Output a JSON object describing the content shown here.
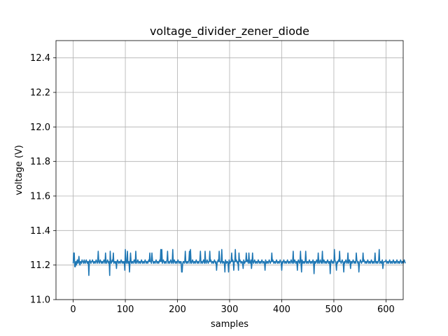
{
  "chart_data": {
    "type": "line",
    "title": "voltage_divider_zener_diode",
    "xlabel": "samples",
    "ylabel": "voltage (V)",
    "xlim": [
      -33,
      633
    ],
    "ylim": [
      11.0,
      12.5
    ],
    "x_ticks": [
      0,
      100,
      200,
      300,
      400,
      500,
      600
    ],
    "y_ticks": [
      11.0,
      11.2,
      11.4,
      11.6,
      11.8,
      12.0,
      12.2,
      12.4
    ],
    "x_tick_labels": [
      "0",
      "100",
      "200",
      "300",
      "400",
      "500",
      "600"
    ],
    "y_tick_labels": [
      "11.0",
      "11.2",
      "11.4",
      "11.6",
      "11.8",
      "12.0",
      "12.2",
      "12.4"
    ],
    "grid": true,
    "series": [
      {
        "color": "#1f77b4",
        "x_start": 0,
        "x_step": 1,
        "baseline": 11.22,
        "values": [
          11.21,
          11.27,
          11.2,
          11.19,
          11.21,
          11.22,
          11.2,
          11.22,
          11.23,
          11.21,
          11.22,
          11.25,
          11.21,
          11.2,
          11.22,
          11.22,
          11.21,
          11.23,
          11.22,
          11.22,
          11.21,
          11.23,
          11.22,
          11.21,
          11.22,
          11.23,
          11.22,
          11.21,
          11.22,
          11.22,
          11.14,
          11.22,
          11.23,
          11.22,
          11.21,
          11.22,
          11.22,
          11.23,
          11.22,
          11.21,
          11.22,
          11.22,
          11.21,
          11.22,
          11.23,
          11.22,
          11.21,
          11.22,
          11.28,
          11.22,
          11.21,
          11.22,
          11.23,
          11.22,
          11.21,
          11.22,
          11.22,
          11.21,
          11.22,
          11.23,
          11.22,
          11.21,
          11.27,
          11.22,
          11.21,
          11.22,
          11.23,
          11.22,
          11.21,
          11.22,
          11.14,
          11.28,
          11.22,
          11.21,
          11.22,
          11.23,
          11.22,
          11.27,
          11.21,
          11.22,
          11.22,
          11.21,
          11.22,
          11.18,
          11.22,
          11.23,
          11.22,
          11.21,
          11.22,
          11.22,
          11.21,
          11.22,
          11.23,
          11.22,
          11.21,
          11.22,
          11.22,
          11.21,
          11.22,
          11.17,
          11.29,
          11.22,
          11.21,
          11.22,
          11.28,
          11.21,
          11.22,
          11.22,
          11.16,
          11.22,
          11.27,
          11.22,
          11.21,
          11.22,
          11.22,
          11.21,
          11.22,
          11.23,
          11.22,
          11.21,
          11.28,
          11.22,
          11.21,
          11.22,
          11.23,
          11.22,
          11.21,
          11.22,
          11.22,
          11.21,
          11.22,
          11.23,
          11.22,
          11.21,
          11.22,
          11.22,
          11.21,
          11.22,
          11.23,
          11.22,
          11.21,
          11.22,
          11.22,
          11.21,
          11.22,
          11.23,
          11.22,
          11.21,
          11.22,
          11.22,
          11.21,
          11.27,
          11.23,
          11.22,
          11.21,
          11.22,
          11.22,
          11.21,
          11.22,
          11.23,
          11.22,
          11.21,
          11.22,
          11.22,
          11.21,
          11.22,
          11.23,
          11.22,
          11.21,
          11.22,
          11.29,
          11.21,
          11.22,
          11.23,
          11.22,
          11.21,
          11.22,
          11.22,
          11.21,
          11.22,
          11.23,
          11.28,
          11.21,
          11.22,
          11.22,
          11.21,
          11.22,
          11.23,
          11.22,
          11.21,
          11.22,
          11.29,
          11.21,
          11.22,
          11.23,
          11.22,
          11.21,
          11.22,
          11.22,
          11.21,
          11.22,
          11.23,
          11.22,
          11.21,
          11.22,
          11.22,
          11.21,
          11.22,
          11.23,
          11.16,
          11.21,
          11.22,
          11.22,
          11.21,
          11.22,
          11.23,
          11.22,
          11.21,
          11.22,
          11.22,
          11.21,
          11.22,
          11.23,
          11.28,
          11.21,
          11.22,
          11.22,
          11.21,
          11.22,
          11.23,
          11.22,
          11.21,
          11.22,
          11.22,
          11.21,
          11.22,
          11.23,
          11.22,
          11.21,
          11.22,
          11.22,
          11.21,
          11.22,
          11.23,
          11.22,
          11.21,
          11.22,
          11.22,
          11.21,
          11.22,
          11.23,
          11.22,
          11.21,
          11.28,
          11.22,
          11.21,
          11.22,
          11.23,
          11.22,
          11.21,
          11.22,
          11.22,
          11.21,
          11.22,
          11.23,
          11.22,
          11.21,
          11.22,
          11.22,
          11.21,
          11.22,
          11.23,
          11.22,
          11.21,
          11.22,
          11.22,
          11.21,
          11.22,
          11.23,
          11.22,
          11.28,
          11.22,
          11.22,
          11.21,
          11.22,
          11.23,
          11.22,
          11.21,
          11.22,
          11.22,
          11.21,
          11.22,
          11.23,
          11.22,
          11.21,
          11.22,
          11.22,
          11.21,
          11.16,
          11.23,
          11.22,
          11.21,
          11.22,
          11.22,
          11.21,
          11.22,
          11.23,
          11.22,
          11.21,
          11.22,
          11.22,
          11.29,
          11.22,
          11.23,
          11.22,
          11.21,
          11.22,
          11.17,
          11.21,
          11.22,
          11.23,
          11.22,
          11.21,
          11.22,
          11.22,
          11.21,
          11.22,
          11.23,
          11.22,
          11.21,
          11.22,
          11.22,
          11.27,
          11.22,
          11.23,
          11.22,
          11.21,
          11.22,
          11.22,
          11.21,
          11.22,
          11.23,
          11.18,
          11.21,
          11.27,
          11.22,
          11.21,
          11.22,
          11.23,
          11.22,
          11.21,
          11.22,
          11.22,
          11.21,
          11.22,
          11.23,
          11.22,
          11.21,
          11.22,
          11.22,
          11.21,
          11.22,
          11.23,
          11.22,
          11.21,
          11.22,
          11.22,
          11.21,
          11.22,
          11.23,
          11.22,
          11.21,
          11.22,
          11.22,
          11.21,
          11.22,
          11.23,
          11.22,
          11.21,
          11.22,
          11.22,
          11.21,
          11.22,
          11.23,
          11.22,
          11.21,
          11.22,
          11.22,
          11.21,
          11.22,
          11.23,
          11.22,
          11.21,
          11.22,
          11.22,
          11.21,
          11.22,
          11.23,
          11.22,
          11.21,
          11.22,
          11.22,
          11.21,
          11.22,
          11.23,
          11.22,
          11.21,
          11.22,
          11.22,
          11.21,
          11.22,
          11.23,
          11.22,
          11.21,
          11.22,
          11.22,
          11.21,
          11.22,
          11.23,
          11.22,
          11.21,
          11.22,
          11.22,
          11.21,
          11.22,
          11.23,
          11.22,
          11.21,
          11.22,
          11.22,
          11.21,
          11.22,
          11.23,
          11.22,
          11.21,
          11.22,
          11.22,
          11.21,
          11.16,
          11.23,
          11.22,
          11.21,
          11.22,
          11.22,
          11.21,
          11.22,
          11.23,
          11.22,
          11.21,
          11.22,
          11.22,
          11.21,
          11.22,
          11.23,
          11.22,
          11.21,
          11.22,
          11.22,
          11.21,
          11.22,
          11.23,
          11.22,
          11.21,
          11.22,
          11.22,
          11.21,
          11.22,
          11.23,
          11.22,
          11.21,
          11.22,
          11.22,
          11.21,
          11.22,
          11.23,
          11.22,
          11.21,
          11.22,
          11.22,
          11.21,
          11.22,
          11.23,
          11.22,
          11.21,
          11.22,
          11.22,
          11.21,
          11.22,
          11.23,
          11.22,
          11.21,
          11.22,
          11.22,
          11.21,
          11.22,
          11.23,
          11.22,
          11.21,
          11.22,
          11.22,
          11.21,
          11.22,
          11.23,
          11.22,
          11.21,
          11.22,
          11.22,
          11.21,
          11.22,
          11.23,
          11.22,
          11.21,
          11.22,
          11.22,
          11.21,
          11.22,
          11.23,
          11.22,
          11.21,
          11.22,
          11.22,
          11.21,
          11.22,
          11.23,
          11.22,
          11.21,
          11.22,
          11.22,
          11.21,
          11.22,
          11.23,
          11.22,
          11.21,
          11.22,
          11.22,
          11.21,
          11.22,
          11.23,
          11.22,
          11.21,
          11.22,
          11.22,
          11.21,
          11.22,
          11.23,
          11.22,
          11.21,
          11.22,
          11.22,
          11.21,
          11.22,
          11.23,
          11.22,
          11.21,
          11.22,
          11.22,
          11.21,
          11.22,
          11.23,
          11.22,
          11.21,
          11.22,
          11.22,
          11.21,
          11.22,
          11.23,
          11.22,
          11.21,
          11.22,
          11.22,
          11.21,
          11.22,
          11.23,
          11.22,
          11.21,
          11.22,
          11.22,
          11.21,
          11.22,
          11.23,
          11.22,
          11.21,
          11.22,
          11.22,
          11.21,
          11.22,
          11.23,
          11.22,
          11.21,
          11.22,
          11.22,
          11.21,
          11.22,
          11.23,
          11.22,
          11.21,
          11.22,
          11.22,
          11.21,
          11.22,
          11.23,
          11.22,
          11.21,
          11.22,
          11.22,
          11.21,
          11.22,
          11.23,
          11.22,
          11.21,
          11.22,
          11.22,
          11.21,
          11.22,
          11.23,
          11.22,
          11.21,
          11.22,
          11.22,
          11.21,
          11.22,
          11.23,
          11.22,
          11.21,
          11.22,
          11.22,
          11.21,
          11.22,
          11.23,
          11.22,
          11.21,
          11.22,
          11.22,
          11.21,
          11.22,
          11.23,
          11.22,
          11.21
        ],
        "spikes": [
          [
            2,
            11.27
          ],
          [
            4,
            11.19
          ],
          [
            11,
            11.25
          ],
          [
            30,
            11.14
          ],
          [
            48,
            11.28
          ],
          [
            62,
            11.27
          ],
          [
            70,
            11.14
          ],
          [
            71,
            11.28
          ],
          [
            77,
            11.27
          ],
          [
            83,
            11.18
          ],
          [
            99,
            11.17
          ],
          [
            100,
            11.29
          ],
          [
            104,
            11.28
          ],
          [
            108,
            11.16
          ],
          [
            110,
            11.27
          ],
          [
            120,
            11.28
          ],
          [
            147,
            11.27
          ],
          [
            168,
            11.29
          ],
          [
            181,
            11.28
          ],
          [
            191,
            11.29
          ],
          [
            208,
            11.16
          ],
          [
            215,
            11.28
          ],
          [
            225,
            11.29
          ],
          [
            244,
            11.28
          ],
          [
            262,
            11.28
          ],
          [
            275,
            11.17
          ],
          [
            285,
            11.29
          ],
          [
            291,
            11.16
          ],
          [
            304,
            11.27
          ],
          [
            308,
            11.17
          ],
          [
            318,
            11.27
          ],
          [
            326,
            11.18
          ],
          [
            337,
            11.27
          ],
          [
            368,
            11.17
          ],
          [
            381,
            11.27
          ],
          [
            400,
            11.17
          ],
          [
            422,
            11.28
          ],
          [
            430,
            11.17
          ],
          [
            436,
            11.28
          ],
          [
            446,
            11.28
          ],
          [
            462,
            11.15
          ],
          [
            470,
            11.27
          ],
          [
            478,
            11.28
          ],
          [
            493,
            11.15
          ],
          [
            501,
            11.29
          ],
          [
            505,
            11.17
          ],
          [
            511,
            11.28
          ],
          [
            519,
            11.16
          ],
          [
            527,
            11.27
          ],
          [
            532,
            11.18
          ],
          [
            543,
            11.27
          ],
          [
            548,
            11.16
          ],
          [
            556,
            11.27
          ],
          [
            579,
            11.27
          ],
          [
            587,
            11.29
          ],
          [
            594,
            11.18
          ],
          [
            598,
            11.22
          ]
        ]
      }
    ]
  }
}
